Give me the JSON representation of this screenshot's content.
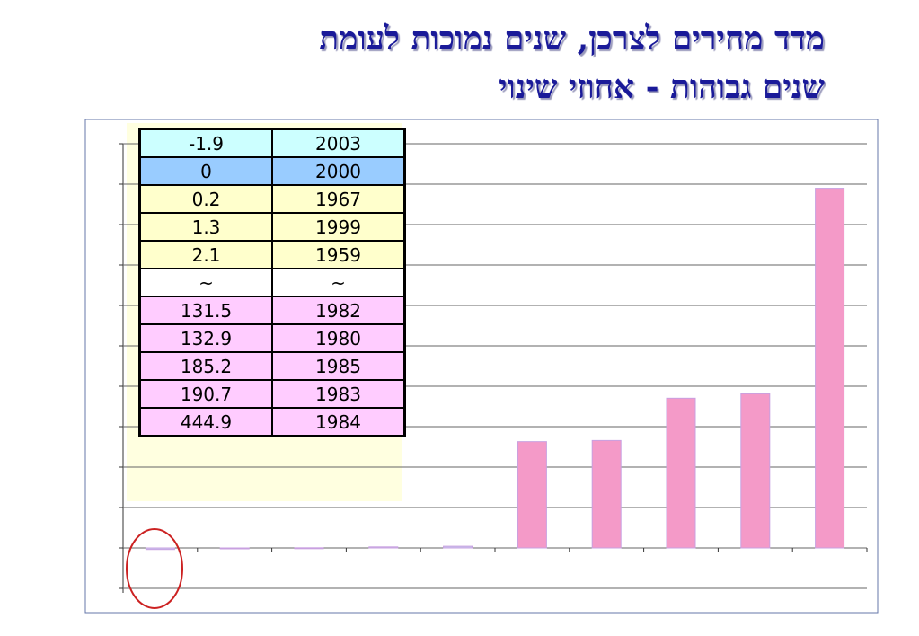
{
  "title_lines": [
    "מדד מחירים לצרכן, שנים נמוכות לעומת",
    "שנים גבוהות - אחוזי שינוי"
  ],
  "chart_data": {
    "type": "bar",
    "categories": [
      "2003",
      "2000",
      "1967",
      "1999",
      "1959",
      "1982",
      "1980",
      "1985",
      "1983",
      "1984"
    ],
    "values": [
      -1.9,
      0,
      0.2,
      1.3,
      2.1,
      131.5,
      132.9,
      185.2,
      190.7,
      444.9
    ],
    "colors": [
      "#c8c8f0",
      "#c8c8f0",
      "#c8c8f0",
      "#c8c8f0",
      "#c8c8f0",
      "#f49ac8",
      "#f49ac8",
      "#f49ac8",
      "#f49ac8",
      "#f49ac8"
    ],
    "ylim": [
      -50,
      500
    ],
    "yticks": [
      -50,
      0,
      50,
      100,
      150,
      200,
      250,
      300,
      350,
      400,
      450,
      500
    ],
    "grid": true,
    "table_break": "~",
    "row_colors": [
      "#ccffff",
      "#99ccff",
      "#ffffcc",
      "#ffffcc",
      "#ffffcc",
      "#ffccff",
      "#ffccff",
      "#ffccff",
      "#ffccff",
      "#ffccff"
    ]
  }
}
